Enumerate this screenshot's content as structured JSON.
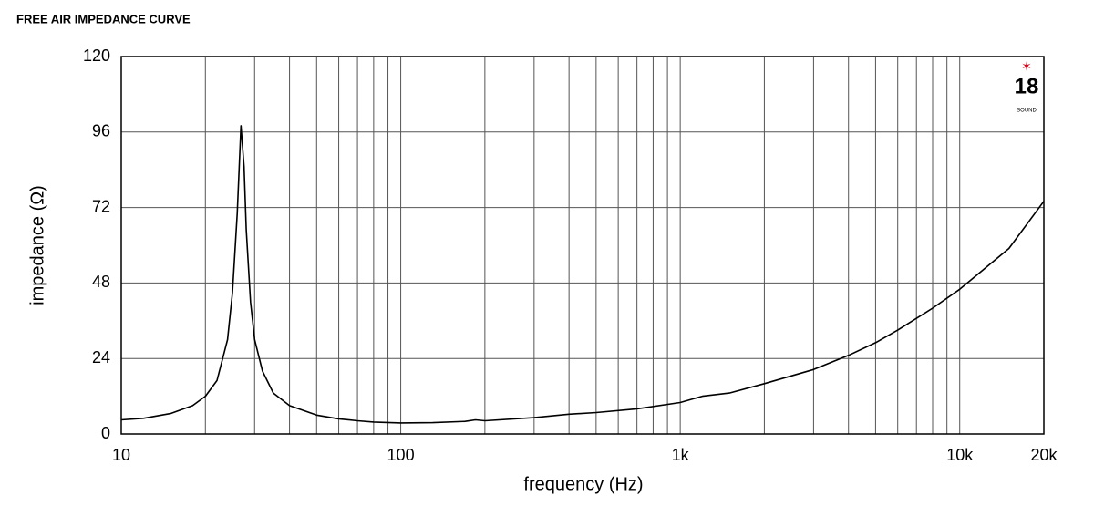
{
  "chart_data": {
    "type": "line",
    "title": "FREE AIR IMPEDANCE CURVE",
    "x_label": "frequency (Hz)",
    "y_label": "impedance (Ω)",
    "logo": {
      "number": "18",
      "text": "SOUND"
    },
    "xscale": "log",
    "grid": true,
    "xlim": [
      10,
      20000
    ],
    "ylim": [
      0,
      120
    ],
    "xticks": [
      10,
      100,
      {
        "value": 1000,
        "label": "1k"
      },
      {
        "value": 10000,
        "label": "10k"
      },
      {
        "value": 20000,
        "label": "20k"
      }
    ],
    "xminorticks": [
      20,
      30,
      40,
      50,
      60,
      70,
      80,
      90,
      200,
      300,
      400,
      500,
      600,
      700,
      800,
      900,
      2000,
      3000,
      4000,
      5000,
      6000,
      7000,
      8000,
      9000
    ],
    "yticks": [
      0,
      24,
      48,
      72,
      96,
      120
    ],
    "series": [
      {
        "name": "impedance",
        "color": "#000000",
        "x": [
          10,
          12,
          15,
          18,
          20,
          22,
          24,
          25,
          26,
          26.8,
          27.5,
          28,
          29,
          30,
          32,
          35,
          40,
          50,
          60,
          70,
          80,
          100,
          130,
          170,
          185,
          200,
          300,
          400,
          500,
          700,
          1000,
          1200,
          1500,
          2000,
          3000,
          4000,
          5000,
          6000,
          8000,
          10000,
          15000,
          20000
        ],
        "values": [
          4.5,
          5,
          6.5,
          9,
          12,
          17,
          30,
          45,
          70,
          98,
          85,
          65,
          42,
          30,
          20,
          13,
          9,
          6,
          4.8,
          4.2,
          3.8,
          3.5,
          3.6,
          4,
          4.5,
          4.2,
          5.2,
          6.3,
          6.8,
          8,
          10,
          12,
          13,
          16,
          20.5,
          25,
          29,
          33,
          40,
          46,
          59,
          74
        ]
      }
    ]
  }
}
